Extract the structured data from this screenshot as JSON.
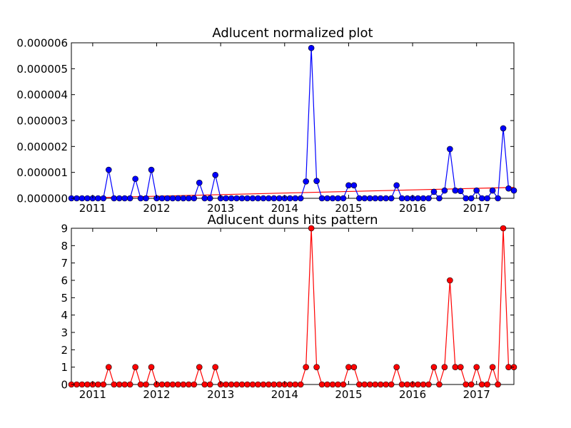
{
  "chart_data": [
    {
      "type": "line",
      "title": "Adlucent normalized plot",
      "xlabel": "",
      "ylabel": "",
      "x_range": [
        "2010-09",
        "2017-08"
      ],
      "ylim": [
        0,
        6e-06
      ],
      "x_ticks": [
        "2011",
        "2012",
        "2013",
        "2014",
        "2015",
        "2016",
        "2017"
      ],
      "y_ticks": [
        "0.000000",
        "0.000001",
        "0.000002",
        "0.000003",
        "0.000004",
        "0.000005",
        "0.000006"
      ],
      "grid": false,
      "legend": "none",
      "series": [
        {
          "color": "#0000ff",
          "marker_color": "#0000ff",
          "points": [
            {
              "x": "2010-09",
              "y": 0
            },
            {
              "x": "2010-10",
              "y": 0
            },
            {
              "x": "2010-11",
              "y": 0
            },
            {
              "x": "2010-12",
              "y": 0
            },
            {
              "x": "2011-01",
              "y": 0
            },
            {
              "x": "2011-02",
              "y": 0
            },
            {
              "x": "2011-03",
              "y": 0
            },
            {
              "x": "2011-04",
              "y": 1.1e-06
            },
            {
              "x": "2011-05",
              "y": 0
            },
            {
              "x": "2011-06",
              "y": 0
            },
            {
              "x": "2011-07",
              "y": 0
            },
            {
              "x": "2011-08",
              "y": 0
            },
            {
              "x": "2011-09",
              "y": 7.5e-07
            },
            {
              "x": "2011-10",
              "y": 0
            },
            {
              "x": "2011-11",
              "y": 0
            },
            {
              "x": "2011-12",
              "y": 1.1e-06
            },
            {
              "x": "2012-01",
              "y": 0
            },
            {
              "x": "2012-02",
              "y": 0
            },
            {
              "x": "2012-03",
              "y": 0
            },
            {
              "x": "2012-04",
              "y": 0
            },
            {
              "x": "2012-05",
              "y": 0
            },
            {
              "x": "2012-06",
              "y": 0
            },
            {
              "x": "2012-07",
              "y": 0
            },
            {
              "x": "2012-08",
              "y": 0
            },
            {
              "x": "2012-09",
              "y": 6e-07
            },
            {
              "x": "2012-10",
              "y": 0
            },
            {
              "x": "2012-11",
              "y": 0
            },
            {
              "x": "2012-12",
              "y": 9e-07
            },
            {
              "x": "2013-01",
              "y": 0
            },
            {
              "x": "2013-02",
              "y": 0
            },
            {
              "x": "2013-03",
              "y": 0
            },
            {
              "x": "2013-04",
              "y": 0
            },
            {
              "x": "2013-05",
              "y": 0
            },
            {
              "x": "2013-06",
              "y": 0
            },
            {
              "x": "2013-07",
              "y": 0
            },
            {
              "x": "2013-08",
              "y": 0
            },
            {
              "x": "2013-09",
              "y": 0
            },
            {
              "x": "2013-10",
              "y": 0
            },
            {
              "x": "2013-11",
              "y": 0
            },
            {
              "x": "2013-12",
              "y": 0
            },
            {
              "x": "2014-01",
              "y": 0
            },
            {
              "x": "2014-02",
              "y": 0
            },
            {
              "x": "2014-03",
              "y": 0
            },
            {
              "x": "2014-04",
              "y": 0
            },
            {
              "x": "2014-05",
              "y": 6.5e-07
            },
            {
              "x": "2014-06",
              "y": 5.8e-06
            },
            {
              "x": "2014-07",
              "y": 6.7e-07
            },
            {
              "x": "2014-08",
              "y": 0
            },
            {
              "x": "2014-09",
              "y": 0
            },
            {
              "x": "2014-10",
              "y": 0
            },
            {
              "x": "2014-11",
              "y": 0
            },
            {
              "x": "2014-12",
              "y": 0
            },
            {
              "x": "2015-01",
              "y": 5e-07
            },
            {
              "x": "2015-02",
              "y": 5e-07
            },
            {
              "x": "2015-03",
              "y": 0
            },
            {
              "x": "2015-04",
              "y": 0
            },
            {
              "x": "2015-05",
              "y": 0
            },
            {
              "x": "2015-06",
              "y": 0
            },
            {
              "x": "2015-07",
              "y": 0
            },
            {
              "x": "2015-08",
              "y": 0
            },
            {
              "x": "2015-09",
              "y": 0
            },
            {
              "x": "2015-10",
              "y": 5e-07
            },
            {
              "x": "2015-11",
              "y": 0
            },
            {
              "x": "2015-12",
              "y": 0
            },
            {
              "x": "2016-01",
              "y": 0
            },
            {
              "x": "2016-02",
              "y": 0
            },
            {
              "x": "2016-03",
              "y": 0
            },
            {
              "x": "2016-04",
              "y": 0
            },
            {
              "x": "2016-05",
              "y": 2.5e-07
            },
            {
              "x": "2016-06",
              "y": 0
            },
            {
              "x": "2016-07",
              "y": 3e-07
            },
            {
              "x": "2016-08",
              "y": 1.9e-06
            },
            {
              "x": "2016-09",
              "y": 3e-07
            },
            {
              "x": "2016-10",
              "y": 2.8e-07
            },
            {
              "x": "2016-11",
              "y": 0
            },
            {
              "x": "2016-12",
              "y": 0
            },
            {
              "x": "2017-01",
              "y": 3e-07
            },
            {
              "x": "2017-02",
              "y": 0
            },
            {
              "x": "2017-03",
              "y": 0
            },
            {
              "x": "2017-04",
              "y": 3e-07
            },
            {
              "x": "2017-05",
              "y": 0
            },
            {
              "x": "2017-06",
              "y": 2.7e-06
            },
            {
              "x": "2017-07",
              "y": 3.8e-07
            },
            {
              "x": "2017-08",
              "y": 3e-07
            }
          ]
        }
      ],
      "trend_line": {
        "color": "#ff0000",
        "start": {
          "x": "2010-09",
          "y": 0
        },
        "end": {
          "x": "2017-08",
          "y": 4.2e-07
        }
      }
    },
    {
      "type": "line",
      "title": "Adlucent duns hits pattern",
      "xlabel": "",
      "ylabel": "",
      "x_range": [
        "2010-09",
        "2017-08"
      ],
      "ylim": [
        0,
        9
      ],
      "x_ticks": [
        "2011",
        "2012",
        "2013",
        "2014",
        "2015",
        "2016",
        "2017"
      ],
      "y_ticks": [
        "0",
        "1",
        "2",
        "3",
        "4",
        "5",
        "6",
        "7",
        "8",
        "9"
      ],
      "grid": false,
      "legend": "none",
      "series": [
        {
          "color": "#ff0000",
          "marker_color": "#ff0000",
          "points": [
            {
              "x": "2010-09",
              "y": 0
            },
            {
              "x": "2010-10",
              "y": 0
            },
            {
              "x": "2010-11",
              "y": 0
            },
            {
              "x": "2010-12",
              "y": 0
            },
            {
              "x": "2011-01",
              "y": 0
            },
            {
              "x": "2011-02",
              "y": 0
            },
            {
              "x": "2011-03",
              "y": 0
            },
            {
              "x": "2011-04",
              "y": 1
            },
            {
              "x": "2011-05",
              "y": 0
            },
            {
              "x": "2011-06",
              "y": 0
            },
            {
              "x": "2011-07",
              "y": 0
            },
            {
              "x": "2011-08",
              "y": 0
            },
            {
              "x": "2011-09",
              "y": 1
            },
            {
              "x": "2011-10",
              "y": 0
            },
            {
              "x": "2011-11",
              "y": 0
            },
            {
              "x": "2011-12",
              "y": 1
            },
            {
              "x": "2012-01",
              "y": 0
            },
            {
              "x": "2012-02",
              "y": 0
            },
            {
              "x": "2012-03",
              "y": 0
            },
            {
              "x": "2012-04",
              "y": 0
            },
            {
              "x": "2012-05",
              "y": 0
            },
            {
              "x": "2012-06",
              "y": 0
            },
            {
              "x": "2012-07",
              "y": 0
            },
            {
              "x": "2012-08",
              "y": 0
            },
            {
              "x": "2012-09",
              "y": 1
            },
            {
              "x": "2012-10",
              "y": 0
            },
            {
              "x": "2012-11",
              "y": 0
            },
            {
              "x": "2012-12",
              "y": 1
            },
            {
              "x": "2013-01",
              "y": 0
            },
            {
              "x": "2013-02",
              "y": 0
            },
            {
              "x": "2013-03",
              "y": 0
            },
            {
              "x": "2013-04",
              "y": 0
            },
            {
              "x": "2013-05",
              "y": 0
            },
            {
              "x": "2013-06",
              "y": 0
            },
            {
              "x": "2013-07",
              "y": 0
            },
            {
              "x": "2013-08",
              "y": 0
            },
            {
              "x": "2013-09",
              "y": 0
            },
            {
              "x": "2013-10",
              "y": 0
            },
            {
              "x": "2013-11",
              "y": 0
            },
            {
              "x": "2013-12",
              "y": 0
            },
            {
              "x": "2014-01",
              "y": 0
            },
            {
              "x": "2014-02",
              "y": 0
            },
            {
              "x": "2014-03",
              "y": 0
            },
            {
              "x": "2014-04",
              "y": 0
            },
            {
              "x": "2014-05",
              "y": 1
            },
            {
              "x": "2014-06",
              "y": 9
            },
            {
              "x": "2014-07",
              "y": 1
            },
            {
              "x": "2014-08",
              "y": 0
            },
            {
              "x": "2014-09",
              "y": 0
            },
            {
              "x": "2014-10",
              "y": 0
            },
            {
              "x": "2014-11",
              "y": 0
            },
            {
              "x": "2014-12",
              "y": 0
            },
            {
              "x": "2015-01",
              "y": 1
            },
            {
              "x": "2015-02",
              "y": 1
            },
            {
              "x": "2015-03",
              "y": 0
            },
            {
              "x": "2015-04",
              "y": 0
            },
            {
              "x": "2015-05",
              "y": 0
            },
            {
              "x": "2015-06",
              "y": 0
            },
            {
              "x": "2015-07",
              "y": 0
            },
            {
              "x": "2015-08",
              "y": 0
            },
            {
              "x": "2015-09",
              "y": 0
            },
            {
              "x": "2015-10",
              "y": 1
            },
            {
              "x": "2015-11",
              "y": 0
            },
            {
              "x": "2015-12",
              "y": 0
            },
            {
              "x": "2016-01",
              "y": 0
            },
            {
              "x": "2016-02",
              "y": 0
            },
            {
              "x": "2016-03",
              "y": 0
            },
            {
              "x": "2016-04",
              "y": 0
            },
            {
              "x": "2016-05",
              "y": 1
            },
            {
              "x": "2016-06",
              "y": 0
            },
            {
              "x": "2016-07",
              "y": 1
            },
            {
              "x": "2016-08",
              "y": 6
            },
            {
              "x": "2016-09",
              "y": 1
            },
            {
              "x": "2016-10",
              "y": 1
            },
            {
              "x": "2016-11",
              "y": 0
            },
            {
              "x": "2016-12",
              "y": 0
            },
            {
              "x": "2017-01",
              "y": 1
            },
            {
              "x": "2017-02",
              "y": 0
            },
            {
              "x": "2017-03",
              "y": 0
            },
            {
              "x": "2017-04",
              "y": 1
            },
            {
              "x": "2017-05",
              "y": 0
            },
            {
              "x": "2017-06",
              "y": 9
            },
            {
              "x": "2017-07",
              "y": 1
            },
            {
              "x": "2017-08",
              "y": 1
            }
          ]
        }
      ]
    }
  ]
}
